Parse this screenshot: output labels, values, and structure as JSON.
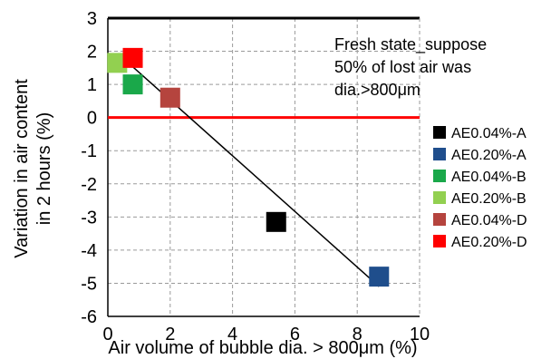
{
  "chart_data": {
    "type": "scatter",
    "xlabel": "Air volume of bubble dia. > 800μm (%)",
    "ylabel": "Variation in air content in 2 hours (%)",
    "ylabel_lines": [
      "Variation in air content",
      "in 2 hours (%)"
    ],
    "xlim": [
      0,
      10
    ],
    "ylim": [
      -6,
      3
    ],
    "x_ticks": [
      0,
      2,
      4,
      6,
      8,
      10
    ],
    "y_ticks": [
      3,
      2,
      1,
      0,
      -1,
      -2,
      -3,
      -4,
      -5,
      -6
    ],
    "grid": "dashed",
    "legend_position": "right",
    "annotation_lines": [
      "Fresh state_suppose",
      "50% of lost air was",
      "dia.>800μm"
    ],
    "zero_line_color": "#ff0000",
    "trendline": {
      "x": [
        0.6,
        8.7
      ],
      "y": [
        1.7,
        -5.1
      ]
    },
    "series": [
      {
        "name": "AE0.04%-A",
        "color": "#000000",
        "x": [
          5.4
        ],
        "y": [
          -3.15
        ]
      },
      {
        "name": "AE0.20%-A",
        "color": "#1f4e8c",
        "x": [
          8.7
        ],
        "y": [
          -4.8
        ]
      },
      {
        "name": "AE0.04%-B",
        "color": "#1aa84a",
        "x": [
          0.8
        ],
        "y": [
          1.0
        ]
      },
      {
        "name": "AE0.20%-B",
        "color": "#92d050",
        "x": [
          0.3
        ],
        "y": [
          1.65
        ]
      },
      {
        "name": "AE0.04%-D",
        "color": "#b5443e",
        "x": [
          2.0
        ],
        "y": [
          0.6
        ]
      },
      {
        "name": "AE0.20%-D",
        "color": "#ff0000",
        "x": [
          0.8
        ],
        "y": [
          1.8
        ]
      }
    ]
  }
}
